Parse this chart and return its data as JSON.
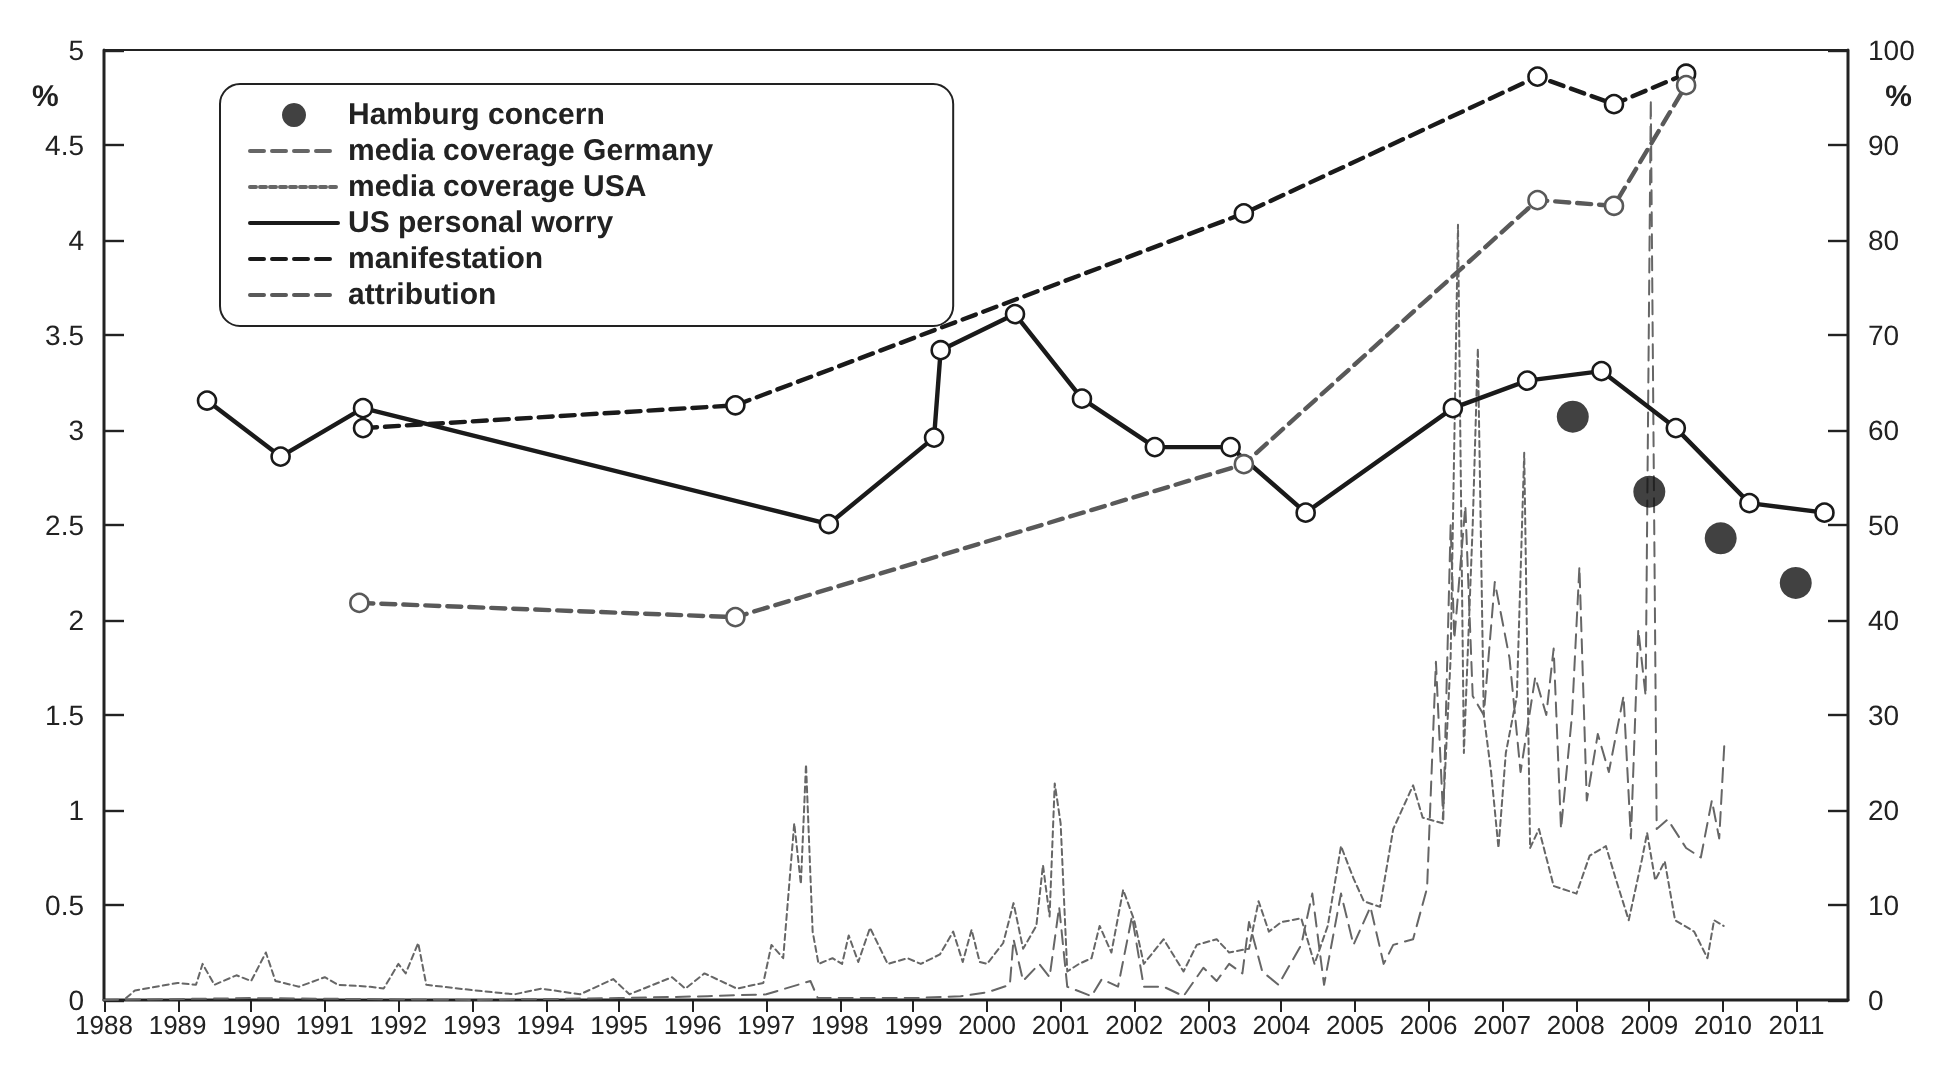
{
  "chart_data": {
    "type": "line",
    "ylabel": "%",
    "y2label": "%",
    "xlim": [
      1988,
      2011.7
    ],
    "xticks": [
      1988,
      1989,
      1990,
      1991,
      1992,
      1993,
      1994,
      1995,
      1996,
      1997,
      1998,
      1999,
      2000,
      2001,
      2002,
      2003,
      2004,
      2005,
      2006,
      2007,
      2008,
      2009,
      2010,
      2011
    ],
    "ylim": [
      0,
      5
    ],
    "yticks": [
      0,
      0.5,
      1,
      1.5,
      2,
      2.5,
      3,
      3.5,
      4,
      4.5,
      5
    ],
    "y2lim": [
      0,
      100
    ],
    "y2ticks": [
      0,
      10,
      20,
      30,
      40,
      50,
      60,
      70,
      80,
      90,
      100
    ],
    "grid": false,
    "legend": "top left",
    "series": [
      {
        "name": "Hamburg concern",
        "type": "scatter",
        "axis": "y2",
        "color": "#111111",
        "marker": "circle",
        "x": [
          2007.96,
          2009.0,
          2009.97,
          2010.99
        ],
        "values": [
          61.4,
          53.5,
          48.6,
          43.9
        ]
      },
      {
        "name": "media coverage Germany",
        "color": "#666666",
        "marker": "none",
        "line_style": "dashed",
        "x": [
          1988.0,
          1990,
          1993,
          1995,
          1996.2,
          1997,
          1997.6,
          1997.7,
          1999,
          1999.64,
          2000,
          2000.31,
          2000.36,
          2000.49,
          2000.71,
          2000.85,
          2000.98,
          2001.09,
          2001.42,
          2001.56,
          2001.78,
          2001.97,
          2002.13,
          2002.4,
          2002.67,
          2002.94,
          2003.12,
          2003.29,
          2003.47,
          2003.56,
          2003.74,
          2003.96,
          2004.27,
          2004.42,
          2004.58,
          2004.81,
          2004.98,
          2005.21,
          2005.39,
          2005.52,
          2005.79,
          2005.98,
          2006.1,
          2006.2,
          2006.3,
          2006.35,
          2006.5,
          2006.6,
          2006.75,
          2006.9,
          2007.0,
          2007.1,
          2007.25,
          2007.45,
          2007.6,
          2007.7,
          2007.8,
          2007.95,
          2008.05,
          2008.15,
          2008.3,
          2008.45,
          2008.65,
          2008.75,
          2008.85,
          2008.95,
          2009.02,
          2009.1,
          2009.25,
          2009.5,
          2009.7,
          2009.85,
          2009.95,
          2010.02
        ],
        "values": [
          0,
          0.01,
          0,
          0.01,
          0.02,
          0.03,
          0.1,
          0.01,
          0.01,
          0.02,
          0.04,
          0.08,
          0.32,
          0.1,
          0.19,
          0.12,
          0.49,
          0.07,
          0.02,
          0.11,
          0.07,
          0.44,
          0.07,
          0.07,
          0.02,
          0.17,
          0.1,
          0.19,
          0.14,
          0.41,
          0.15,
          0.08,
          0.29,
          0.56,
          0.08,
          0.56,
          0.29,
          0.49,
          0.19,
          0.29,
          0.32,
          0.59,
          1.78,
          0.95,
          2.5,
          1.9,
          2.6,
          1.6,
          1.5,
          2.2,
          2.0,
          1.8,
          1.2,
          1.7,
          1.5,
          1.85,
          0.9,
          1.5,
          2.28,
          1.05,
          1.4,
          1.2,
          1.6,
          0.85,
          1.95,
          1.6,
          4.74,
          0.9,
          0.95,
          0.8,
          0.75,
          1.05,
          0.85,
          1.35
        ]
      },
      {
        "name": "media coverage USA",
        "color": "#666666",
        "marker": "none",
        "line_style": "dotted",
        "x": [
          1988.3,
          1988.42,
          1989,
          1989.25,
          1989.34,
          1989.5,
          1989.8,
          1990,
          1990.2,
          1990.33,
          1990.65,
          1991,
          1991.18,
          1991.62,
          1991.8,
          1992,
          1992.1,
          1992.27,
          1992.38,
          1993.05,
          1993.58,
          1993.94,
          1994.47,
          1994.92,
          1995.14,
          1995.72,
          1995.9,
          1996.16,
          1996.6,
          1996.96,
          1997.07,
          1997.23,
          1997.38,
          1997.47,
          1997.54,
          1997.63,
          1997.71,
          1997.9,
          1998.03,
          1998.12,
          1998.25,
          1998.41,
          1998.65,
          1998.92,
          1999.1,
          1999.36,
          1999.54,
          1999.67,
          1999.79,
          1999.9,
          2000,
          2000.22,
          2000.36,
          2000.49,
          2000.67,
          2000.76,
          2000.85,
          2000.92,
          2001,
          2001.09,
          2001.25,
          2001.42,
          2001.53,
          2001.69,
          2001.85,
          2002,
          2002.13,
          2002.4,
          2002.67,
          2002.85,
          2003.12,
          2003.29,
          2003.56,
          2003.69,
          2003.83,
          2004,
          2004.27,
          2004.45,
          2004.63,
          2004.81,
          2004.98,
          2005.12,
          2005.34,
          2005.52,
          2005.79,
          2005.92,
          2006.1,
          2006.19,
          2006.3,
          2006.4,
          2006.48,
          2006.6,
          2006.67,
          2006.75,
          2006.85,
          2006.95,
          2007.05,
          2007.2,
          2007.3,
          2007.38,
          2007.5,
          2007.7,
          2008.01,
          2008.19,
          2008.41,
          2008.55,
          2008.72,
          2008.9,
          2008.97,
          2009.08,
          2009.21,
          2009.35,
          2009.61,
          2009.79,
          2009.88,
          2010.01
        ],
        "values": [
          0.01,
          0.05,
          0.09,
          0.08,
          0.19,
          0.08,
          0.13,
          0.1,
          0.25,
          0.1,
          0.07,
          0.12,
          0.08,
          0.07,
          0.06,
          0.19,
          0.14,
          0.3,
          0.08,
          0.05,
          0.03,
          0.06,
          0.03,
          0.11,
          0.03,
          0.12,
          0.06,
          0.14,
          0.06,
          0.09,
          0.29,
          0.22,
          0.93,
          0.61,
          1.24,
          0.36,
          0.19,
          0.22,
          0.19,
          0.34,
          0.2,
          0.38,
          0.19,
          0.22,
          0.19,
          0.24,
          0.36,
          0.2,
          0.37,
          0.2,
          0.19,
          0.3,
          0.51,
          0.27,
          0.39,
          0.71,
          0.44,
          1.14,
          0.93,
          0.15,
          0.19,
          0.22,
          0.39,
          0.25,
          0.58,
          0.42,
          0.19,
          0.32,
          0.15,
          0.29,
          0.32,
          0.25,
          0.27,
          0.52,
          0.36,
          0.41,
          0.43,
          0.19,
          0.39,
          0.81,
          0.64,
          0.52,
          0.49,
          0.9,
          1.13,
          0.96,
          0.94,
          0.93,
          1.8,
          4.08,
          1.3,
          2.5,
          3.43,
          1.5,
          1.2,
          0.8,
          1.3,
          1.6,
          2.88,
          0.8,
          0.9,
          0.6,
          0.56,
          0.76,
          0.81,
          0.63,
          0.42,
          0.74,
          0.88,
          0.63,
          0.73,
          0.42,
          0.36,
          0.22,
          0.42,
          0.39
        ]
      },
      {
        "name": "US personal worry",
        "axis": "y2",
        "color": "#1a1a1a",
        "marker": "circle",
        "line_style": "solid",
        "x": [
          1989.4,
          1990.4,
          1991.52,
          1997.85,
          1999.28,
          1999.37,
          2000.38,
          2001.29,
          2002.28,
          2003.31,
          2004.33,
          2006.33,
          2007.34,
          2008.35,
          2009.36,
          2010.36,
          2011.38
        ],
        "values": [
          63.1,
          57.2,
          62.3,
          50.1,
          59.2,
          68.4,
          72.2,
          63.3,
          58.2,
          58.2,
          51.3,
          62.3,
          65.2,
          66.2,
          60.2,
          52.3,
          51.3
        ]
      },
      {
        "name": "manifestation",
        "axis": "y2",
        "color": "#1a1a1a",
        "marker": "circle",
        "line_style": "dashed",
        "x": [
          1991.52,
          1996.58,
          2003.49,
          2007.48,
          2008.52,
          2009.5
        ],
        "values": [
          60.2,
          62.6,
          82.8,
          97.2,
          94.3,
          97.5
        ]
      },
      {
        "name": "attribution",
        "axis": "y2",
        "color": "#595959",
        "marker": "circle",
        "line_style": "dashed",
        "x": [
          1991.47,
          1996.58,
          2003.49,
          2007.48,
          2008.52,
          2009.5
        ],
        "values": [
          41.8,
          40.3,
          56.4,
          84.2,
          83.6,
          96.3
        ]
      }
    ]
  }
}
